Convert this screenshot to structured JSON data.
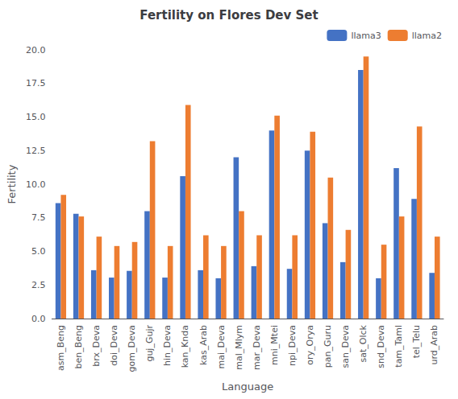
{
  "chart_data": {
    "type": "bar",
    "title": "Fertility on Flores Dev Set",
    "xlabel": "Language",
    "ylabel": "Fertility",
    "categories": [
      "asm_Beng",
      "ben_Beng",
      "brx_Deva",
      "doi_Deva",
      "gom_Deva",
      "guj_Gujr",
      "hin_Deva",
      "kan_Knda",
      "kas_Arab",
      "mai_Deva",
      "mal_Mlym",
      "mar_Deva",
      "mni_Mtei",
      "npi_Deva",
      "ory_Orya",
      "pan_Guru",
      "san_Deva",
      "sat_Olck",
      "snd_Deva",
      "tam_Taml",
      "tel_Telu",
      "urd_Arab"
    ],
    "series": [
      {
        "name": "llama3",
        "color": "#4472c4",
        "values": [
          8.6,
          7.8,
          3.6,
          3.05,
          3.55,
          8.0,
          3.05,
          10.6,
          3.6,
          3.0,
          12.0,
          3.9,
          14.0,
          3.7,
          12.5,
          7.1,
          4.2,
          18.5,
          3.0,
          11.2,
          8.9,
          3.4
        ]
      },
      {
        "name": "llama2",
        "color": "#ed7d31",
        "values": [
          9.2,
          7.6,
          6.1,
          5.4,
          5.7,
          13.2,
          5.4,
          15.9,
          6.2,
          5.4,
          8.0,
          6.2,
          15.1,
          6.2,
          13.9,
          10.5,
          6.6,
          19.5,
          5.5,
          7.6,
          14.3,
          6.1
        ]
      }
    ],
    "ylim": [
      0,
      20.0
    ],
    "yticks": [
      {
        "value": 0,
        "label": "0.0"
      },
      2.5,
      {
        "value": 5,
        "label": "5.0"
      },
      7.5,
      {
        "value": 10,
        "label": "10.0"
      },
      12.5,
      {
        "value": 15,
        "label": "15.0"
      },
      17.5,
      {
        "value": 20,
        "label": "20.0"
      }
    ],
    "legend": "upper right",
    "grid": false
  }
}
